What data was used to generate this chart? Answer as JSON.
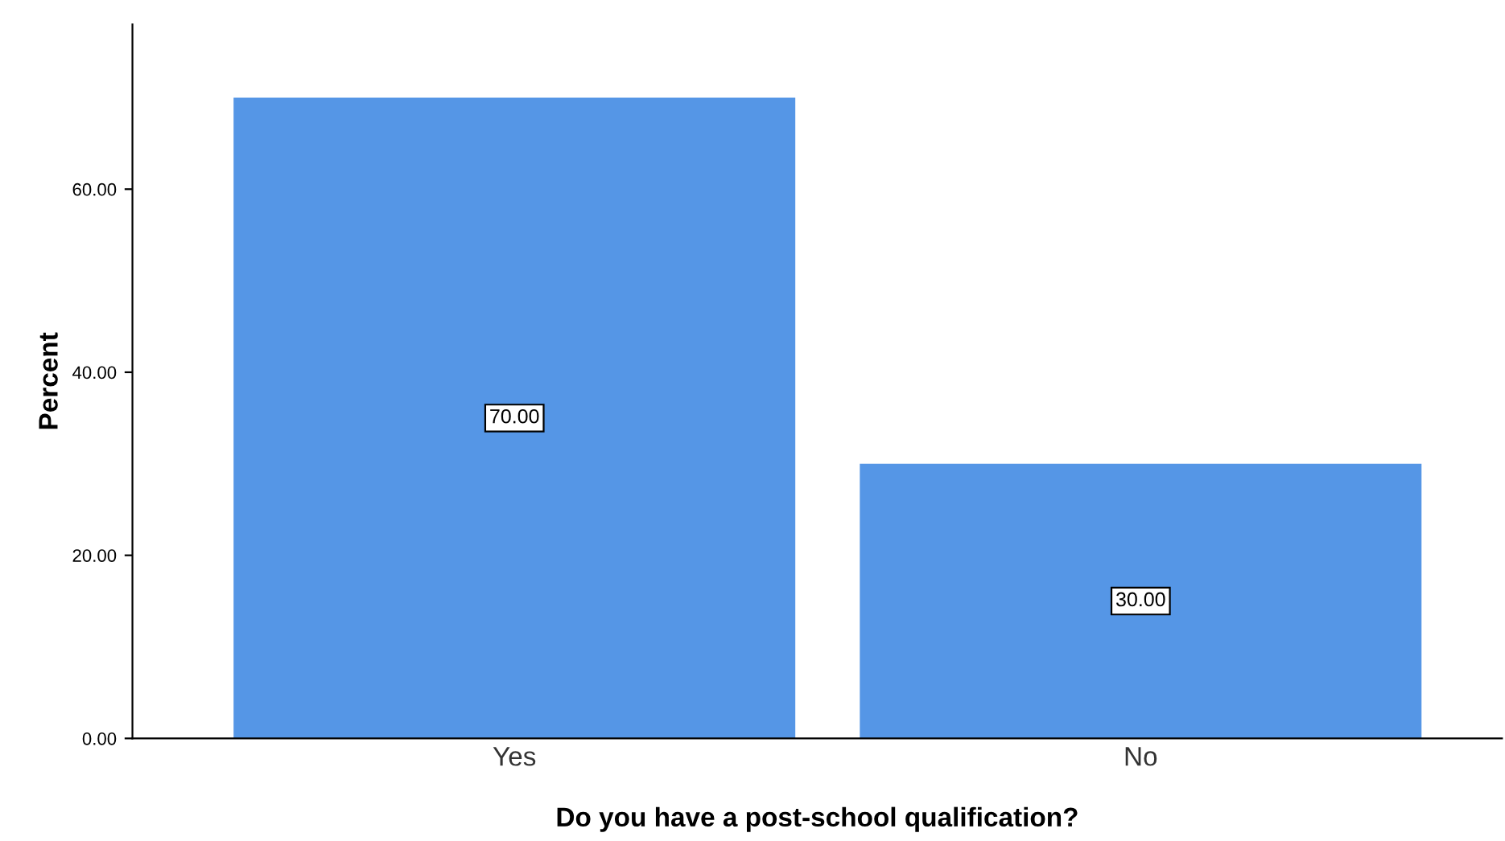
{
  "chart_data": {
    "type": "bar",
    "xlabel": "Do you have a post-school qualification?",
    "ylabel": "Percent",
    "categories": [
      "Yes",
      "No"
    ],
    "values": [
      70,
      30
    ],
    "color": "#5596e6",
    "value_labels": [
      "70.00",
      "30.00"
    ],
    "ylim": [
      0,
      78
    ],
    "yticks": [
      {
        "value": 0,
        "label": "0.00"
      },
      {
        "value": 20,
        "label": "20.00"
      },
      {
        "value": 40,
        "label": "40.00"
      },
      {
        "value": 60,
        "label": "60.00"
      }
    ],
    "grid": false
  }
}
